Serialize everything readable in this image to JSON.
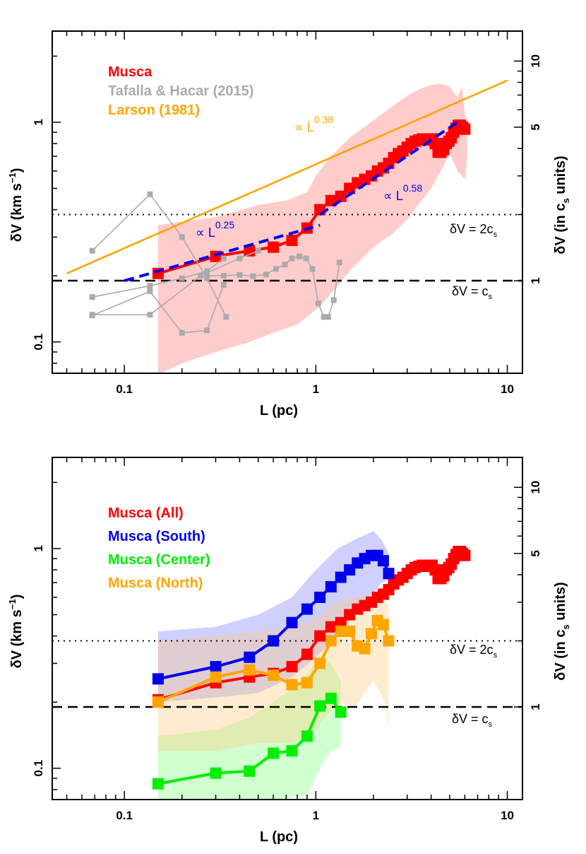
{
  "chart_data": [
    {
      "type": "line",
      "panel": "top",
      "xlabel": "L (pc)",
      "ylabel": "δV (km s⁻¹)",
      "ylabel_right": "δV (in cₛ units)",
      "x_scale": "log",
      "y_scale": "log",
      "xlim": [
        0.042,
        12
      ],
      "ylim": [
        0.072,
        2.6
      ],
      "x_ticks": [
        {
          "value": 0.1,
          "label": "0.1"
        },
        {
          "value": 1,
          "label": "1"
        },
        {
          "value": 10,
          "label": "10"
        }
      ],
      "y_ticks": [
        {
          "value": 0.1,
          "label": "0.1"
        },
        {
          "value": 1,
          "label": "1"
        }
      ],
      "y_ticks_right": [
        {
          "value": 1,
          "label": "1"
        },
        {
          "value": 5,
          "label": "5"
        },
        {
          "value": 10,
          "label": "10"
        }
      ],
      "legend_position": "top-left",
      "legend": [
        {
          "label": "Musca",
          "color": "#ff0000"
        },
        {
          "label": "Tafalla & Hacar (2015)",
          "color": "#aaaaaa"
        },
        {
          "label": "Larson (1981)",
          "color": "#ffa500"
        }
      ],
      "reference_lines": [
        {
          "y": 0.19,
          "style": "dashed",
          "label": "δV = cₛ"
        },
        {
          "y": 0.38,
          "style": "dotted",
          "label": "δV = 2cₛ"
        }
      ],
      "annotations": [
        {
          "text": "∝ L",
          "exp": "0.38",
          "color": "#ffa500"
        },
        {
          "text": "∝ L",
          "exp": "0.58",
          "color": "#0000ee"
        },
        {
          "text": "∝ L",
          "exp": "0.25",
          "color": "#0000ee"
        }
      ],
      "series": [
        {
          "name": "Musca",
          "color": "#ff0000",
          "marker": "square",
          "x": [
            0.15,
            0.3,
            0.45,
            0.6,
            0.75,
            0.9,
            1.05,
            1.2,
            1.35,
            1.5,
            1.65,
            1.8,
            1.95,
            2.1,
            2.25,
            2.4,
            2.55,
            2.7,
            2.85,
            3.0,
            3.15,
            3.3,
            3.45,
            3.6,
            3.75,
            3.9,
            4.05,
            4.2,
            4.35,
            4.5,
            4.65,
            4.8,
            4.95,
            5.1,
            5.25,
            5.4,
            5.55,
            5.7,
            5.85,
            6.0
          ],
          "y": [
            0.205,
            0.245,
            0.26,
            0.27,
            0.29,
            0.33,
            0.4,
            0.44,
            0.46,
            0.5,
            0.53,
            0.55,
            0.57,
            0.6,
            0.62,
            0.65,
            0.69,
            0.72,
            0.74,
            0.77,
            0.8,
            0.82,
            0.83,
            0.84,
            0.84,
            0.83,
            0.84,
            0.8,
            0.73,
            0.73,
            0.75,
            0.8,
            0.82,
            0.85,
            0.9,
            0.94,
            0.97,
            0.97,
            0.95,
            0.93
          ],
          "envelope_upper": [
            [
              0.15,
              0.34
            ],
            [
              0.3,
              0.37
            ],
            [
              0.5,
              0.42
            ],
            [
              0.7,
              0.44
            ],
            [
              0.9,
              0.48
            ],
            [
              1.0,
              0.57
            ],
            [
              1.2,
              0.7
            ],
            [
              1.5,
              0.85
            ],
            [
              2.0,
              1.02
            ],
            [
              2.5,
              1.18
            ],
            [
              3.0,
              1.32
            ],
            [
              3.5,
              1.42
            ],
            [
              4.0,
              1.48
            ],
            [
              4.5,
              1.5
            ],
            [
              5.0,
              1.45
            ],
            [
              5.5,
              1.3
            ],
            [
              5.8,
              1.45
            ],
            [
              6.0,
              1.1
            ],
            [
              6.2,
              0.95
            ]
          ],
          "envelope_lower": [
            [
              6.2,
              0.7
            ],
            [
              6.0,
              0.55
            ],
            [
              5.5,
              0.6
            ],
            [
              5.0,
              0.72
            ],
            [
              4.5,
              0.6
            ],
            [
              4.0,
              0.5
            ],
            [
              3.5,
              0.43
            ],
            [
              3.0,
              0.36
            ],
            [
              2.5,
              0.31
            ],
            [
              2.0,
              0.27
            ],
            [
              1.5,
              0.21
            ],
            [
              1.3,
              0.18
            ],
            [
              1.05,
              0.145
            ],
            [
              0.8,
              0.12
            ],
            [
              0.6,
              0.11
            ],
            [
              0.45,
              0.1
            ],
            [
              0.3,
              0.09
            ],
            [
              0.2,
              0.08
            ],
            [
              0.15,
              0.071
            ]
          ]
        },
        {
          "name": "Tafalla & Hacar (2015)",
          "color": "#aaaaaa",
          "marker": "square",
          "segments": [
            {
              "x": [
                0.068,
                0.136,
                0.2,
                0.27,
                0.34
              ],
              "y": [
                0.26,
                0.47,
                0.3,
                0.195,
                0.13
              ]
            },
            {
              "x": [
                0.068,
                0.136,
                0.2,
                0.27,
                0.33
              ],
              "y": [
                0.16,
                0.18,
                0.195,
                0.21,
                0.24
              ]
            },
            {
              "x": [
                0.068,
                0.136,
                0.2,
                0.27,
                0.33
              ],
              "y": [
                0.132,
                0.17,
                0.11,
                0.113,
                0.182
              ]
            },
            {
              "x": [
                0.068,
                0.136,
                0.25,
                0.4,
                0.5
              ],
              "y": [
                0.133,
                0.133,
                0.2,
                0.24,
                0.26
              ]
            },
            {
              "x": [
                0.27,
                0.33,
                0.4,
                0.47,
                0.55,
                0.62,
                0.69,
                0.75,
                0.82,
                0.89,
                0.96,
                1.03,
                1.1,
                1.16,
                1.24,
                1.33
              ],
              "y": [
                0.2,
                0.2,
                0.202,
                0.199,
                0.203,
                0.215,
                0.225,
                0.24,
                0.245,
                0.24,
                0.215,
                0.15,
                0.13,
                0.13,
                0.155,
                0.23
              ]
            }
          ]
        },
        {
          "name": "Larson (1981)",
          "color": "#ffa500",
          "x": [
            0.05,
            10
          ],
          "y": [
            0.205,
            1.55
          ]
        },
        {
          "name": "∝ L^0.25",
          "color": "#0000ee",
          "style": "dashed",
          "x": [
            0.1,
            1.05
          ],
          "y": [
            0.19,
            0.34
          ]
        },
        {
          "name": "∝ L^0.58",
          "color": "#0000ee",
          "style": "dashed",
          "x": [
            1.05,
            5.5
          ],
          "y": [
            0.38,
            1.0
          ]
        }
      ]
    },
    {
      "type": "line",
      "panel": "bottom",
      "xlabel": "L (pc)",
      "ylabel": "δV (km s⁻¹)",
      "ylabel_right": "δV (in cₛ units)",
      "x_scale": "log",
      "y_scale": "log",
      "xlim": [
        0.042,
        12
      ],
      "ylim": [
        0.072,
        2.6
      ],
      "x_ticks": [
        {
          "value": 0.1,
          "label": "0.1"
        },
        {
          "value": 1,
          "label": "1"
        },
        {
          "value": 10,
          "label": "10"
        }
      ],
      "y_ticks": [
        {
          "value": 0.1,
          "label": "0.1"
        },
        {
          "value": 1,
          "label": "1"
        }
      ],
      "y_ticks_right": [
        {
          "value": 1,
          "label": "1"
        },
        {
          "value": 5,
          "label": "5"
        },
        {
          "value": 10,
          "label": "10"
        }
      ],
      "legend_position": "top-left",
      "legend": [
        {
          "label": "Musca (All)",
          "color": "#ff0000"
        },
        {
          "label": "Musca (South)",
          "color": "#0000ee"
        },
        {
          "label": "Musca (Center)",
          "color": "#00ee00"
        },
        {
          "label": "Musca (North)",
          "color": "#ffa500"
        }
      ],
      "reference_lines": [
        {
          "y": 0.19,
          "style": "dashed",
          "label": "δV = cₛ"
        },
        {
          "y": 0.38,
          "style": "dotted",
          "label": "δV = 2cₛ"
        }
      ],
      "series": [
        {
          "name": "Musca (All)",
          "color": "#ff0000",
          "marker": "square",
          "x": [
            0.15,
            0.3,
            0.45,
            0.6,
            0.75,
            0.9,
            1.05,
            1.2,
            1.35,
            1.5,
            1.65,
            1.8,
            1.95,
            2.1,
            2.25,
            2.4,
            2.55,
            2.7,
            2.85,
            3.0,
            3.15,
            3.3,
            3.45,
            3.6,
            3.75,
            3.9,
            4.05,
            4.2,
            4.35,
            4.5,
            4.65,
            4.8,
            4.95,
            5.1,
            5.25,
            5.4,
            5.55,
            5.7,
            5.85,
            6.0
          ],
          "y": [
            0.205,
            0.245,
            0.26,
            0.27,
            0.29,
            0.33,
            0.4,
            0.44,
            0.46,
            0.5,
            0.53,
            0.55,
            0.57,
            0.6,
            0.62,
            0.65,
            0.69,
            0.72,
            0.74,
            0.77,
            0.8,
            0.82,
            0.83,
            0.84,
            0.84,
            0.83,
            0.84,
            0.8,
            0.73,
            0.73,
            0.75,
            0.8,
            0.82,
            0.85,
            0.9,
            0.94,
            0.97,
            0.97,
            0.95,
            0.93
          ]
        },
        {
          "name": "Musca (South)",
          "color": "#0000ee",
          "marker": "square",
          "x": [
            0.15,
            0.3,
            0.45,
            0.6,
            0.75,
            0.9,
            1.05,
            1.2,
            1.35,
            1.5,
            1.65,
            1.8,
            1.95,
            2.1,
            2.25,
            2.4
          ],
          "y": [
            0.255,
            0.29,
            0.32,
            0.38,
            0.46,
            0.53,
            0.6,
            0.67,
            0.74,
            0.8,
            0.86,
            0.9,
            0.93,
            0.93,
            0.88,
            0.77
          ],
          "envelope_upper": [
            [
              0.15,
              0.42
            ],
            [
              0.3,
              0.44
            ],
            [
              0.5,
              0.5
            ],
            [
              0.75,
              0.6
            ],
            [
              1.0,
              0.8
            ],
            [
              1.3,
              1.0
            ],
            [
              1.6,
              1.1
            ],
            [
              2.0,
              1.2
            ],
            [
              2.2,
              1.1
            ],
            [
              2.4,
              0.95
            ]
          ],
          "envelope_lower": [
            [
              2.4,
              0.72
            ],
            [
              2.2,
              0.7
            ],
            [
              2.0,
              0.62
            ],
            [
              1.6,
              0.5
            ],
            [
              1.3,
              0.4
            ],
            [
              1.0,
              0.32
            ],
            [
              0.75,
              0.26
            ],
            [
              0.5,
              0.22
            ],
            [
              0.3,
              0.21
            ],
            [
              0.15,
              0.2
            ]
          ]
        },
        {
          "name": "Musca (Center)",
          "color": "#00ee00",
          "marker": "square",
          "x": [
            0.15,
            0.3,
            0.45,
            0.6,
            0.75,
            0.9,
            1.05,
            1.2,
            1.35
          ],
          "y": [
            0.085,
            0.095,
            0.097,
            0.117,
            0.12,
            0.14,
            0.192,
            0.208,
            0.18
          ],
          "envelope_upper": [
            [
              0.15,
              0.14
            ],
            [
              0.3,
              0.15
            ],
            [
              0.45,
              0.17
            ],
            [
              0.6,
              0.2
            ],
            [
              0.75,
              0.23
            ],
            [
              0.9,
              0.27
            ],
            [
              1.05,
              0.32
            ],
            [
              1.2,
              0.3
            ],
            [
              1.35,
              0.25
            ]
          ],
          "envelope_lower": [
            [
              1.35,
              0.125
            ],
            [
              1.2,
              0.12
            ],
            [
              1.05,
              0.1
            ],
            [
              0.9,
              0.075
            ],
            [
              0.6,
              0.072
            ],
            [
              0.3,
              0.072
            ],
            [
              0.15,
              0.072
            ]
          ]
        },
        {
          "name": "Musca (North)",
          "color": "#ffa500",
          "marker": "square",
          "x": [
            0.15,
            0.3,
            0.45,
            0.6,
            0.75,
            0.9,
            1.05,
            1.2,
            1.35,
            1.5,
            1.65,
            1.8,
            1.95,
            2.1,
            2.25,
            2.4
          ],
          "y": [
            0.2,
            0.26,
            0.28,
            0.265,
            0.24,
            0.245,
            0.3,
            0.38,
            0.42,
            0.42,
            0.36,
            0.35,
            0.41,
            0.47,
            0.45,
            0.38
          ],
          "envelope_upper": [
            [
              0.15,
              0.38
            ],
            [
              0.3,
              0.4
            ],
            [
              0.5,
              0.42
            ],
            [
              0.75,
              0.44
            ],
            [
              1.0,
              0.48
            ],
            [
              1.3,
              0.58
            ],
            [
              1.6,
              0.6
            ],
            [
              2.0,
              0.62
            ],
            [
              2.2,
              0.6
            ],
            [
              2.4,
              0.55
            ]
          ],
          "envelope_lower": [
            [
              2.4,
              0.15
            ],
            [
              2.3,
              0.2
            ],
            [
              2.0,
              0.25
            ],
            [
              1.6,
              0.19
            ],
            [
              1.3,
              0.2
            ],
            [
              1.0,
              0.15
            ],
            [
              0.75,
              0.13
            ],
            [
              0.5,
              0.13
            ],
            [
              0.3,
              0.12
            ],
            [
              0.15,
              0.12
            ]
          ]
        }
      ]
    }
  ]
}
